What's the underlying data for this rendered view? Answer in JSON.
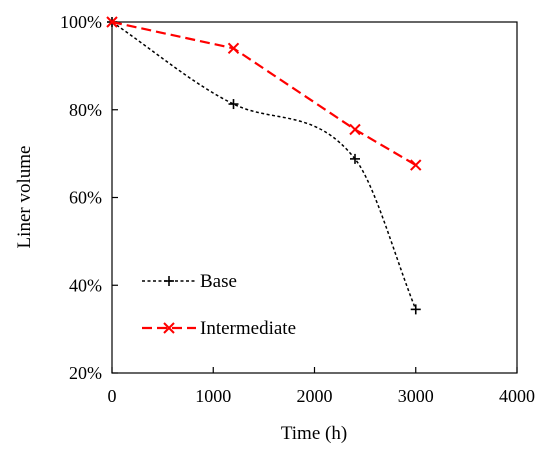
{
  "chart_data": {
    "type": "line",
    "xlabel": "Time (h)",
    "ylabel": "Liner volume",
    "xlim": [
      0,
      4000
    ],
    "ylim": [
      20,
      100
    ],
    "x_ticks": [
      0,
      1000,
      2000,
      3000,
      4000
    ],
    "x_tick_labels": [
      "0",
      "1000",
      "2000",
      "3000",
      "4000"
    ],
    "y_ticks": [
      20,
      40,
      60,
      80,
      100
    ],
    "y_tick_labels": [
      "20%",
      "40%",
      "60%",
      "80%",
      "100%"
    ],
    "grid": false,
    "legend_position": "lower-left inside",
    "series": [
      {
        "name": "Base",
        "x": [
          0,
          1200,
          2400,
          3000
        ],
        "y": [
          100,
          81.3,
          68.8,
          34.5
        ],
        "color": "#000000",
        "line_style": "dotted",
        "marker": "plus",
        "smooth": true
      },
      {
        "name": "Intermediate",
        "x": [
          0,
          1200,
          2400,
          3000
        ],
        "y": [
          100,
          94,
          75.5,
          67.4
        ],
        "color": "#ff0000",
        "line_style": "dashed",
        "marker": "x",
        "smooth": false
      }
    ]
  }
}
